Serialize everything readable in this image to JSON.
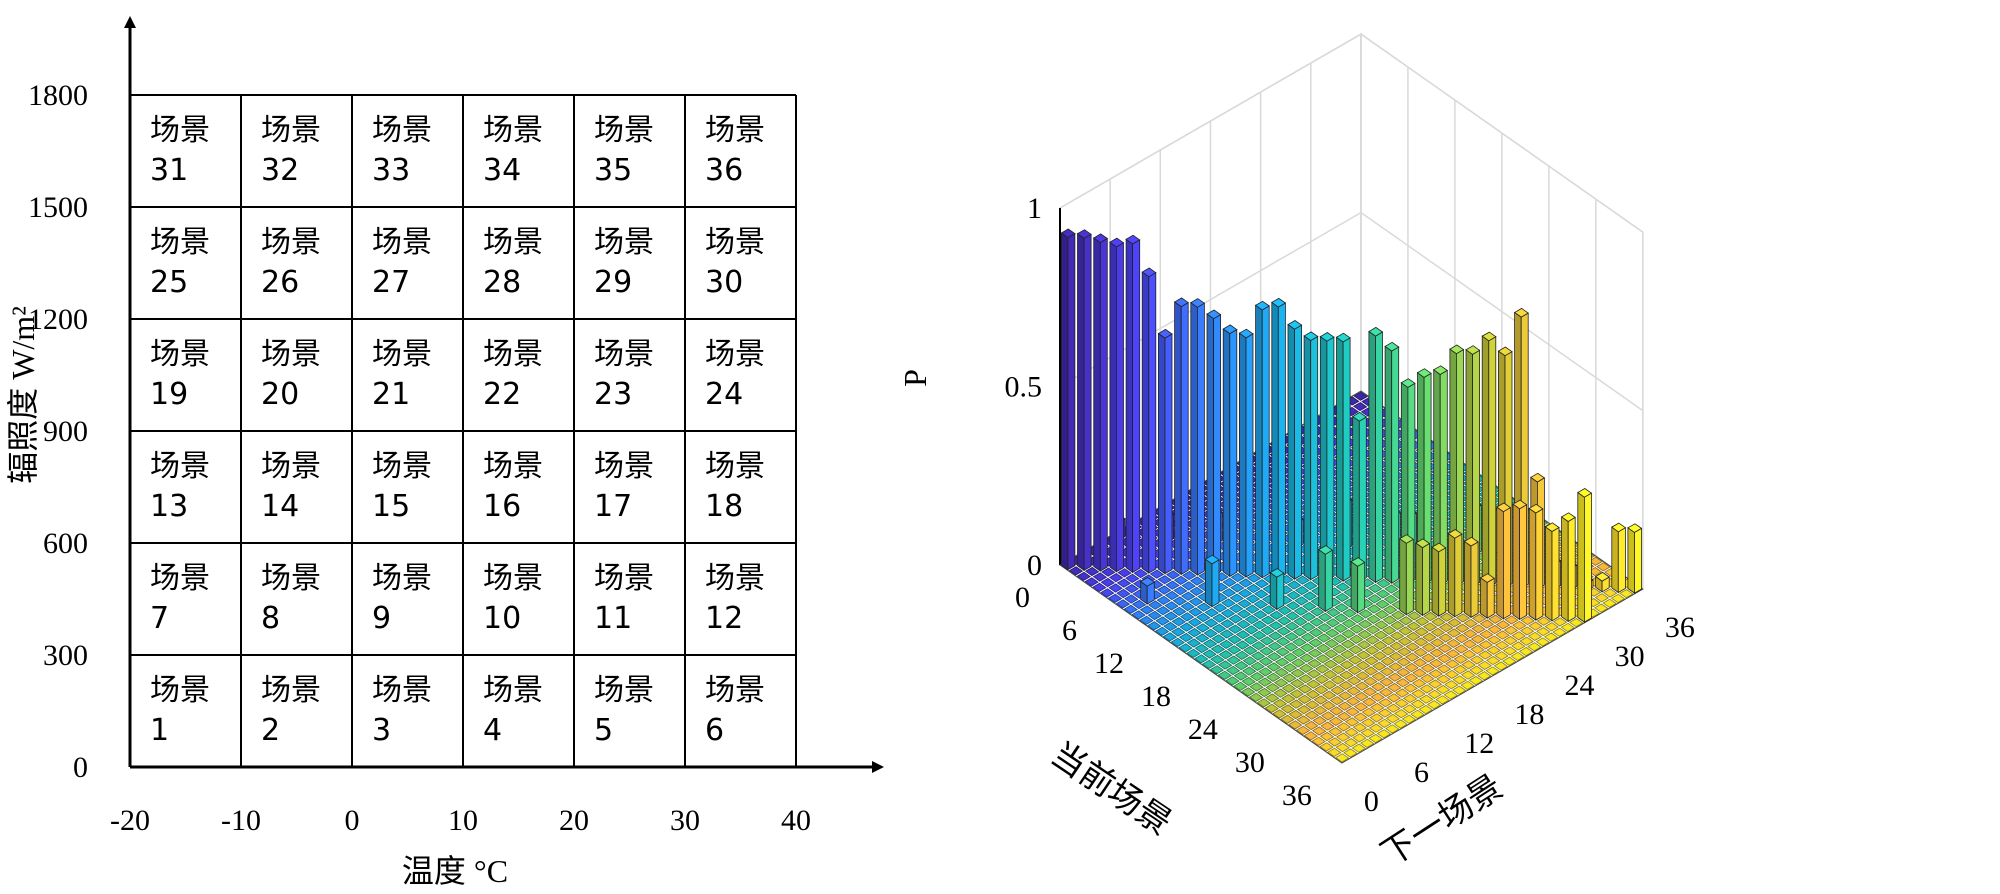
{
  "chart_data": [
    {
      "type": "table",
      "xlabel": "温度 °C",
      "ylabel": "辐照度 W/m²",
      "x_ticks": [
        "-20",
        "-10",
        "0",
        "10",
        "20",
        "30",
        "40"
      ],
      "y_ticks": [
        "0",
        "300",
        "600",
        "900",
        "1200",
        "1500",
        "1800"
      ],
      "cell_prefix": "场景",
      "rows": [
        [
          "31",
          "32",
          "33",
          "34",
          "35",
          "36"
        ],
        [
          "25",
          "26",
          "27",
          "28",
          "29",
          "30"
        ],
        [
          "19",
          "20",
          "21",
          "22",
          "23",
          "24"
        ],
        [
          "13",
          "14",
          "15",
          "16",
          "17",
          "18"
        ],
        [
          "7",
          "8",
          "9",
          "10",
          "11",
          "12"
        ],
        [
          "1",
          "2",
          "3",
          "4",
          "5",
          "6"
        ]
      ]
    },
    {
      "type": "bar3d",
      "zlabel": "P",
      "xlabel": "当前场景",
      "ylabel": "下一场景",
      "z_ticks": [
        "0",
        "0.5",
        "1"
      ],
      "x_ticks": [
        "0",
        "6",
        "12",
        "18",
        "24",
        "30",
        "36"
      ],
      "y_ticks": [
        "0",
        "6",
        "12",
        "18",
        "24",
        "30",
        "36"
      ],
      "zlim": [
        0,
        1
      ],
      "colormap": [
        "#3e26a8",
        "#4a3ff0",
        "#2f7ef5",
        "#17a8e0",
        "#1ec0b0",
        "#5ccf6a",
        "#c6c230",
        "#f9b33b",
        "#f8e621"
      ],
      "tall_bars": [
        {
          "current": 1,
          "next": 1,
          "p": 0.93
        },
        {
          "current": 2,
          "next": 2,
          "p": 0.93
        },
        {
          "current": 3,
          "next": 3,
          "p": 0.92
        },
        {
          "current": 4,
          "next": 4,
          "p": 0.91
        },
        {
          "current": 5,
          "next": 5,
          "p": 0.92
        },
        {
          "current": 6,
          "next": 6,
          "p": 0.83
        },
        {
          "current": 7,
          "next": 7,
          "p": 0.66
        },
        {
          "current": 8,
          "next": 8,
          "p": 0.75
        },
        {
          "current": 9,
          "next": 9,
          "p": 0.75
        },
        {
          "current": 10,
          "next": 10,
          "p": 0.72
        },
        {
          "current": 11,
          "next": 11,
          "p": 0.68
        },
        {
          "current": 12,
          "next": 12,
          "p": 0.67
        },
        {
          "current": 13,
          "next": 13,
          "p": 0.75
        },
        {
          "current": 14,
          "next": 14,
          "p": 0.76
        },
        {
          "current": 15,
          "next": 15,
          "p": 0.7
        },
        {
          "current": 16,
          "next": 16,
          "p": 0.67
        },
        {
          "current": 17,
          "next": 17,
          "p": 0.67
        },
        {
          "current": 18,
          "next": 18,
          "p": 0.67
        },
        {
          "current": 19,
          "next": 19,
          "p": 0.45
        },
        {
          "current": 20,
          "next": 20,
          "p": 0.69
        },
        {
          "current": 21,
          "next": 21,
          "p": 0.65
        },
        {
          "current": 22,
          "next": 22,
          "p": 0.55
        },
        {
          "current": 23,
          "next": 23,
          "p": 0.58
        },
        {
          "current": 24,
          "next": 24,
          "p": 0.59
        },
        {
          "current": 25,
          "next": 25,
          "p": 0.65
        },
        {
          "current": 26,
          "next": 26,
          "p": 0.65
        },
        {
          "current": 27,
          "next": 27,
          "p": 0.69
        },
        {
          "current": 28,
          "next": 28,
          "p": 0.65
        },
        {
          "current": 29,
          "next": 29,
          "p": 0.76
        },
        {
          "current": 30,
          "next": 30,
          "p": 0.3
        },
        {
          "current": 31,
          "next": 31,
          "p": 0.07
        },
        {
          "current": 32,
          "next": 32,
          "p": 0.06
        },
        {
          "current": 33,
          "next": 33,
          "p": 0.02
        },
        {
          "current": 34,
          "next": 34,
          "p": 0.03
        },
        {
          "current": 35,
          "next": 35,
          "p": 0.17
        },
        {
          "current": 36,
          "next": 36,
          "p": 0.17
        }
      ],
      "small_bars": [
        {
          "current": 1,
          "next": 7,
          "p": 0.05
        },
        {
          "current": 4,
          "next": 10,
          "p": 0.07
        },
        {
          "current": 7,
          "next": 13,
          "p": 0.08
        },
        {
          "current": 9,
          "next": 3,
          "p": 0.05
        },
        {
          "current": 12,
          "next": 18,
          "p": 0.07
        },
        {
          "current": 13,
          "next": 7,
          "p": 0.12
        },
        {
          "current": 15,
          "next": 21,
          "p": 0.13
        },
        {
          "current": 18,
          "next": 24,
          "p": 0.1
        },
        {
          "current": 19,
          "next": 25,
          "p": 0.1
        },
        {
          "current": 20,
          "next": 14,
          "p": 0.16
        },
        {
          "current": 23,
          "next": 29,
          "p": 0.13
        },
        {
          "current": 24,
          "next": 30,
          "p": 0.12
        },
        {
          "current": 25,
          "next": 19,
          "p": 0.2
        },
        {
          "current": 26,
          "next": 20,
          "p": 0.19
        },
        {
          "current": 27,
          "next": 21,
          "p": 0.18
        },
        {
          "current": 28,
          "next": 22,
          "p": 0.22
        },
        {
          "current": 29,
          "next": 23,
          "p": 0.2
        },
        {
          "current": 31,
          "next": 25,
          "p": 0.3
        },
        {
          "current": 32,
          "next": 26,
          "p": 0.31
        },
        {
          "current": 33,
          "next": 27,
          "p": 0.3
        },
        {
          "current": 34,
          "next": 28,
          "p": 0.25
        },
        {
          "current": 35,
          "next": 29,
          "p": 0.28
        },
        {
          "current": 36,
          "next": 30,
          "p": 0.35
        },
        {
          "current": 30,
          "next": 24,
          "p": 0.1
        },
        {
          "current": 22,
          "next": 16,
          "p": 0.13
        },
        {
          "current": 17,
          "next": 11,
          "p": 0.09
        }
      ]
    }
  ]
}
